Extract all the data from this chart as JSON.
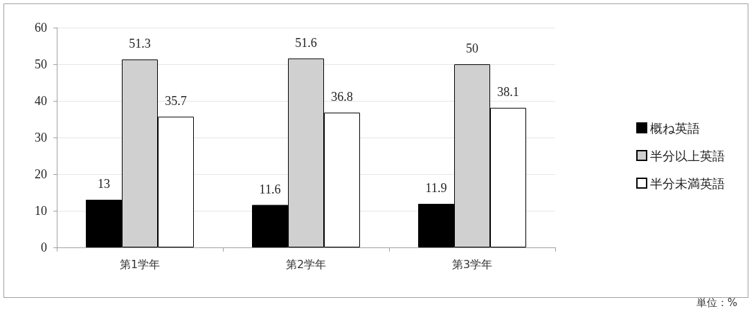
{
  "chart_data": {
    "type": "bar",
    "categories": [
      "第1学年",
      "第2学年",
      "第3学年"
    ],
    "series": [
      {
        "name": "概ね英語",
        "color": "#000000",
        "values": [
          13,
          11.6,
          11.9
        ]
      },
      {
        "name": "半分以上英語",
        "color": "#d0d0d0",
        "values": [
          51.3,
          51.6,
          50
        ]
      },
      {
        "name": "半分未満英語",
        "color": "#ffffff",
        "values": [
          35.7,
          36.8,
          38.1
        ]
      }
    ],
    "ylim": [
      0,
      60
    ],
    "yticks": [
      0,
      10,
      20,
      30,
      40,
      50,
      60
    ],
    "grid": "y",
    "legend": "right",
    "data_labels": true,
    "annotations": [
      "単位：%"
    ]
  }
}
